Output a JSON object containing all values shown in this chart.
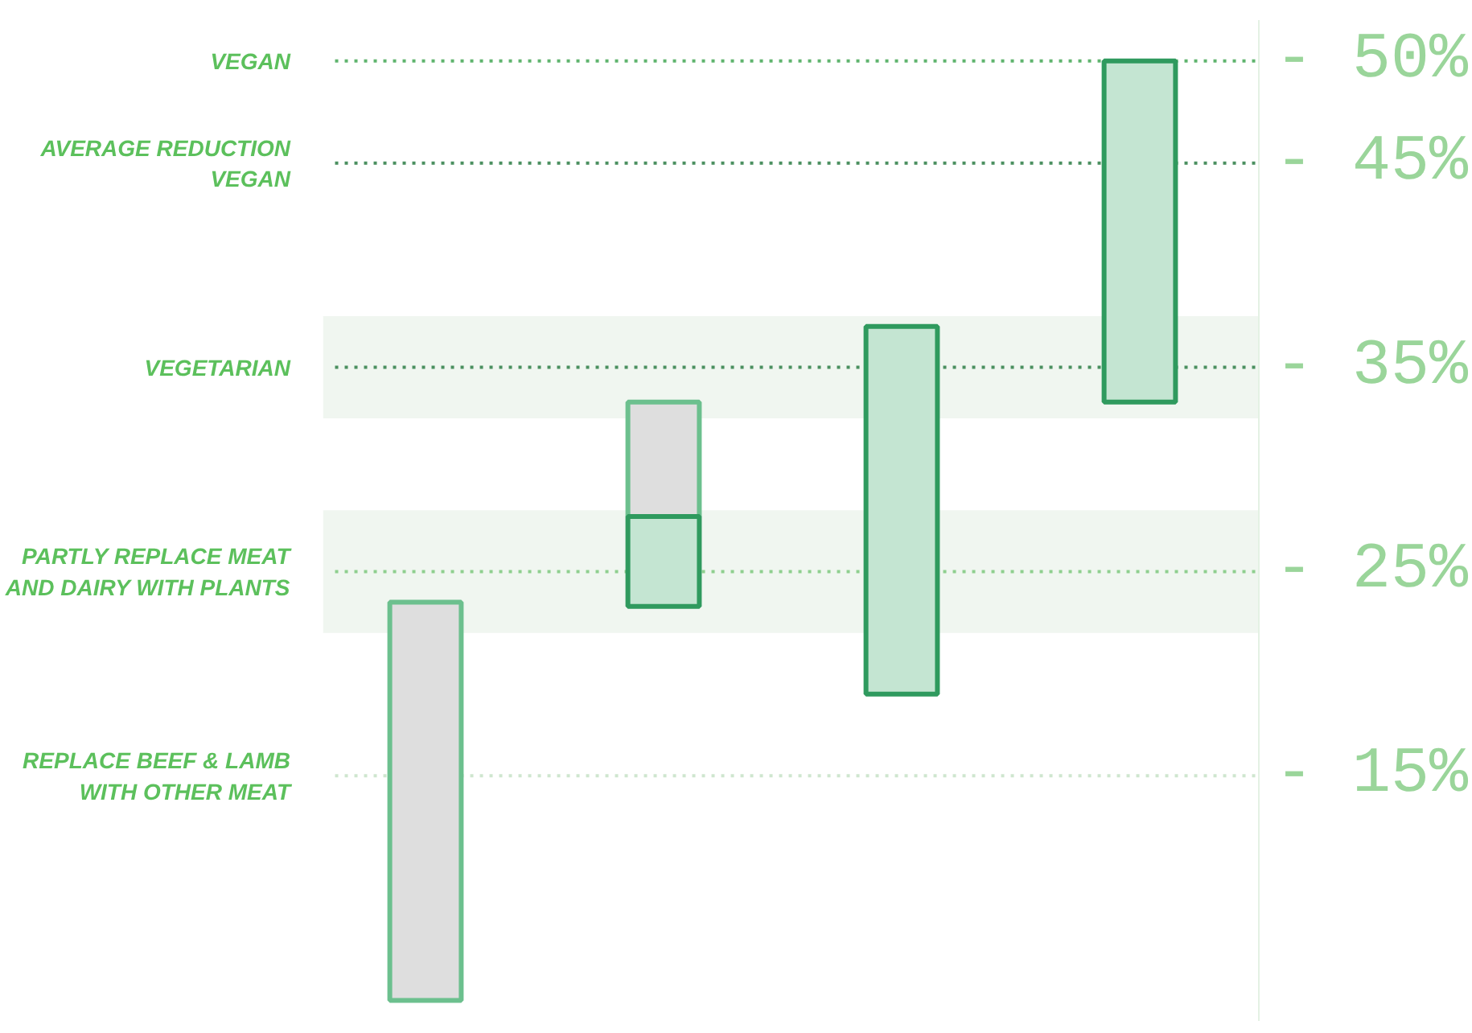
{
  "chart_data": {
    "type": "bar",
    "categories": [
      null,
      null,
      null,
      null
    ],
    "series": [
      {
        "color": "#dedede",
        "values": [
          -19.5,
          -5.6,
          null,
          null
        ],
        "base": [
          -4,
          -27.7,
          null,
          null
        ]
      },
      {
        "color": "#c4e5d2",
        "values": [
          null,
          -4.4,
          -18,
          -16.7
        ],
        "base": [
          null,
          -23.3,
          -19,
          -33.3
        ]
      }
    ],
    "ylim": [
      -3,
      -52
    ],
    "yticks": [
      {
        "value": -50,
        "label": "- 50%"
      },
      {
        "value": -45,
        "label": "- 45%"
      },
      {
        "value": -35,
        "label": "- 35%"
      },
      {
        "value": -25,
        "label": "- 25%"
      },
      {
        "value": -15,
        "label": "- 15%"
      }
    ],
    "ref_lines": [
      {
        "axis": "y",
        "value": -50,
        "label": "VEGAN",
        "color": "#5fb46e",
        "line_style": "dotted"
      },
      {
        "axis": "y",
        "value": -45,
        "label": "AVERAGE REDUCTION\nVEGAN",
        "color": "#4a8f5f",
        "line_style": "dotted"
      },
      {
        "axis": "y",
        "value": -35,
        "label": "VEGETARIAN",
        "color": "#4a8f5f",
        "line_style": "dotted"
      },
      {
        "axis": "y",
        "value": -25,
        "label": "PARTLY REPLACE MEAT\nAND DAIRY WITH PLANTS",
        "color": "#8fcf8f",
        "line_style": "dotted"
      },
      {
        "axis": "y",
        "value": -15,
        "label": "REPLACE BEEF & LAMB\nWITH OTHER MEAT",
        "color": "#cfe6cf",
        "line_style": "dotted"
      }
    ],
    "bands": [
      {
        "axis": "y",
        "from": -37.5,
        "to": -32.5,
        "color": "#eef5ee"
      },
      {
        "axis": "y",
        "from": -28,
        "to": -22,
        "color": "#eef5ee"
      }
    ],
    "grid": false,
    "tick_labels": "y"
  }
}
